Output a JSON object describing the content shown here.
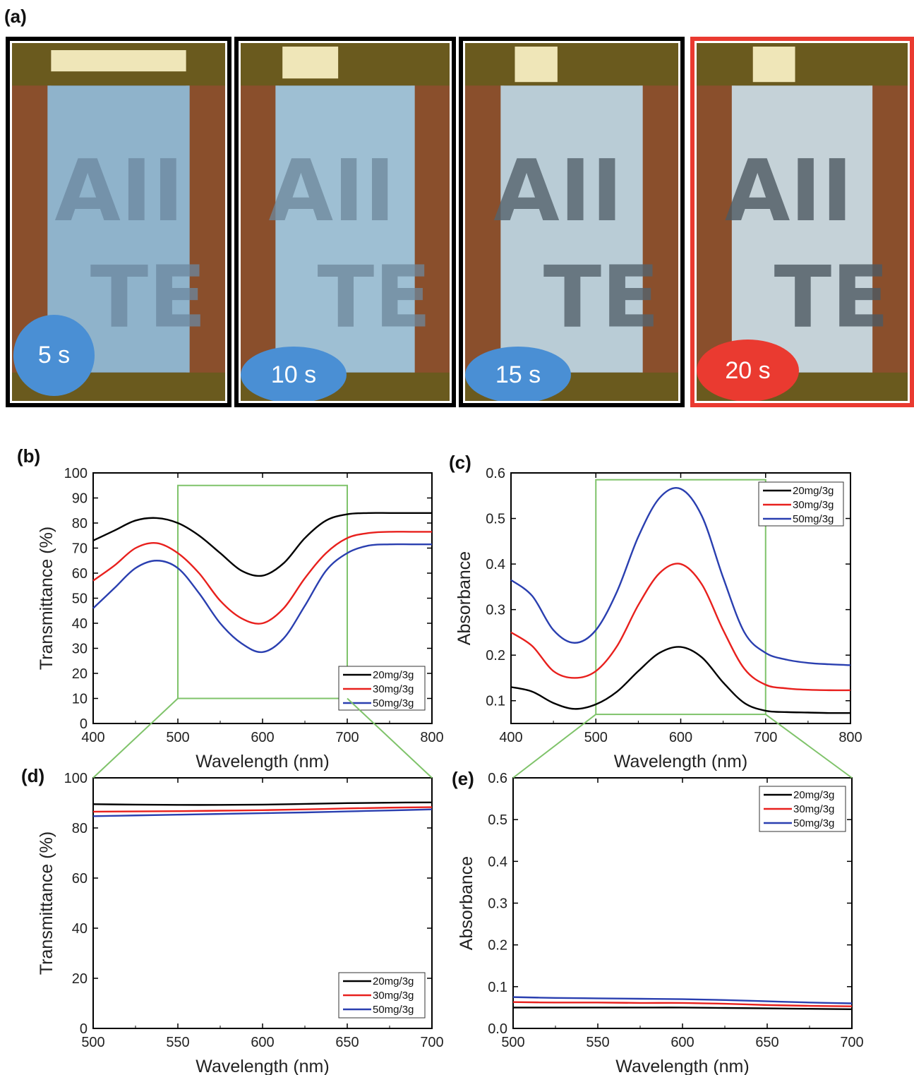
{
  "panel_a": {
    "label": "(a)",
    "photos": [
      {
        "time_label": "5 s",
        "badge_color": "#4a8fd4",
        "frame_color": "#000000",
        "film_color": "#8fb3cb"
      },
      {
        "time_label": "10 s",
        "badge_color": "#4a8fd4",
        "frame_color": "#000000",
        "film_color": "#9ebfd3"
      },
      {
        "time_label": "15 s",
        "badge_color": "#4a8fd4",
        "frame_color": "#000000",
        "film_color": "#b9ccd6"
      },
      {
        "time_label": "20 s",
        "badge_color": "#ea3a30",
        "frame_color": "#ea3a30",
        "film_color": "#c5d2d8"
      }
    ]
  },
  "chart_data": [
    {
      "id": "b",
      "panel_label": "(b)",
      "type": "line",
      "xlabel": "Wavelength (nm)",
      "ylabel": "Transmittance (%)",
      "xlim": [
        400,
        800
      ],
      "ylim": [
        0,
        100
      ],
      "xticks": [
        400,
        500,
        600,
        700,
        800
      ],
      "yticks": [
        0,
        10,
        20,
        30,
        40,
        50,
        60,
        70,
        80,
        90,
        100
      ],
      "legend_position": "bottom-right",
      "zoom_box": {
        "x": [
          500,
          700
        ],
        "y": [
          10,
          95
        ]
      },
      "x": [
        400,
        425,
        450,
        475,
        500,
        525,
        550,
        575,
        600,
        625,
        650,
        675,
        700,
        725,
        750,
        775,
        800
      ],
      "series": [
        {
          "name": "20mg/3g",
          "color": "#000000",
          "values": [
            73,
            77,
            81,
            82,
            80,
            75,
            68,
            61,
            59,
            64,
            74,
            81,
            83.5,
            84,
            84,
            84,
            84
          ]
        },
        {
          "name": "30mg/3g",
          "color": "#e8201d",
          "values": [
            57,
            63,
            70,
            72,
            68,
            60,
            49,
            42,
            40,
            46,
            58,
            68,
            74,
            76,
            76.5,
            76.5,
            76.5
          ]
        },
        {
          "name": "50mg/3g",
          "color": "#2a3fb0",
          "values": [
            46,
            54,
            62,
            65,
            62,
            52,
            40,
            32,
            28.5,
            34,
            47,
            61,
            68,
            71,
            71.5,
            71.5,
            71.5
          ]
        }
      ]
    },
    {
      "id": "c",
      "panel_label": "(c)",
      "type": "line",
      "xlabel": "Wavelength (nm)",
      "ylabel": "Absorbance",
      "xlim": [
        400,
        800
      ],
      "ylim": [
        0.05,
        0.6
      ],
      "xticks": [
        400,
        500,
        600,
        700,
        800
      ],
      "yticks": [
        0.1,
        0.2,
        0.3,
        0.4,
        0.5,
        0.6
      ],
      "legend_position": "top-right",
      "zoom_box": {
        "x": [
          500,
          700
        ],
        "y": [
          0.07,
          0.585
        ]
      },
      "x": [
        400,
        425,
        450,
        475,
        500,
        525,
        550,
        575,
        600,
        625,
        650,
        675,
        700,
        725,
        750,
        775,
        800
      ],
      "series": [
        {
          "name": "20mg/3g",
          "color": "#000000",
          "values": [
            0.13,
            0.12,
            0.095,
            0.082,
            0.092,
            0.12,
            0.165,
            0.205,
            0.218,
            0.195,
            0.14,
            0.095,
            0.078,
            0.075,
            0.074,
            0.073,
            0.073
          ]
        },
        {
          "name": "30mg/3g",
          "color": "#e8201d",
          "values": [
            0.25,
            0.22,
            0.165,
            0.15,
            0.165,
            0.22,
            0.31,
            0.38,
            0.4,
            0.355,
            0.255,
            0.17,
            0.135,
            0.127,
            0.124,
            0.123,
            0.123
          ]
        },
        {
          "name": "50mg/3g",
          "color": "#2a3fb0",
          "values": [
            0.365,
            0.33,
            0.255,
            0.227,
            0.255,
            0.34,
            0.46,
            0.545,
            0.565,
            0.505,
            0.37,
            0.25,
            0.205,
            0.19,
            0.183,
            0.18,
            0.178
          ]
        }
      ]
    },
    {
      "id": "d",
      "panel_label": "(d)",
      "type": "line",
      "xlabel": "Wavelength (nm)",
      "ylabel": "Transmittance (%)",
      "xlim": [
        500,
        700
      ],
      "ylim": [
        0,
        100
      ],
      "xticks": [
        500,
        550,
        600,
        650,
        700
      ],
      "yticks": [
        0,
        20,
        40,
        60,
        80,
        100
      ],
      "legend_position": "bottom-right",
      "x": [
        500,
        525,
        550,
        575,
        600,
        625,
        650,
        675,
        700
      ],
      "series": [
        {
          "name": "20mg/3g",
          "color": "#000000",
          "values": [
            89.5,
            89.3,
            89.2,
            89.2,
            89.3,
            89.6,
            89.9,
            90.1,
            90.2
          ]
        },
        {
          "name": "30mg/3g",
          "color": "#e8201d",
          "values": [
            86.5,
            86.6,
            86.7,
            86.9,
            87.1,
            87.4,
            87.8,
            88.1,
            88.3
          ]
        },
        {
          "name": "50mg/3g",
          "color": "#2a3fb0",
          "values": [
            84.7,
            85,
            85.3,
            85.6,
            85.9,
            86.2,
            86.6,
            87,
            87.4
          ]
        }
      ]
    },
    {
      "id": "e",
      "panel_label": "(e)",
      "type": "line",
      "xlabel": "Wavelength (nm)",
      "ylabel": "Absorbance",
      "xlim": [
        500,
        700
      ],
      "ylim": [
        0,
        0.6
      ],
      "xticks": [
        500,
        550,
        600,
        650,
        700
      ],
      "yticks": [
        0.0,
        0.1,
        0.2,
        0.3,
        0.4,
        0.5,
        0.6
      ],
      "legend_position": "top-right",
      "x": [
        500,
        525,
        550,
        575,
        600,
        625,
        650,
        675,
        700
      ],
      "series": [
        {
          "name": "20mg/3g",
          "color": "#000000",
          "values": [
            0.05,
            0.05,
            0.05,
            0.05,
            0.05,
            0.049,
            0.048,
            0.047,
            0.046
          ]
        },
        {
          "name": "30mg/3g",
          "color": "#e8201d",
          "values": [
            0.063,
            0.062,
            0.062,
            0.061,
            0.061,
            0.059,
            0.056,
            0.054,
            0.053
          ]
        },
        {
          "name": "50mg/3g",
          "color": "#2a3fb0",
          "values": [
            0.075,
            0.073,
            0.072,
            0.071,
            0.07,
            0.068,
            0.065,
            0.062,
            0.06
          ]
        }
      ]
    }
  ]
}
